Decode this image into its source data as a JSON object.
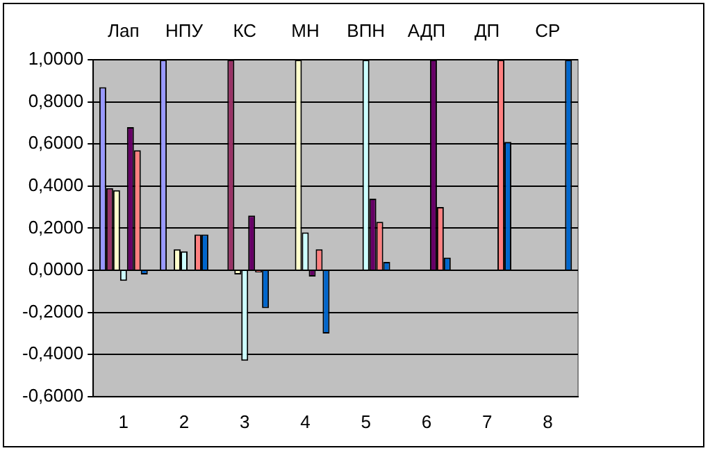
{
  "chart_data": {
    "type": "bar",
    "categories": [
      "1",
      "2",
      "3",
      "4",
      "5",
      "6",
      "7",
      "8"
    ],
    "annotations": [
      "Лап",
      "НПУ",
      "КС",
      "МН",
      "ВПН",
      "АДП",
      "ДП",
      "СР"
    ],
    "series": [
      {
        "color": "#9999ff",
        "values": [
          0.87,
          1.0,
          null,
          null,
          null,
          null,
          null,
          null
        ]
      },
      {
        "color": "#993366",
        "values": [
          0.39,
          null,
          1.0,
          null,
          null,
          null,
          null,
          null
        ]
      },
      {
        "color": "#ffffcc",
        "values": [
          0.38,
          0.1,
          -0.02,
          1.0,
          null,
          null,
          null,
          null
        ]
      },
      {
        "color": "#ccffff",
        "values": [
          -0.05,
          0.09,
          -0.43,
          0.18,
          1.0,
          null,
          null,
          null
        ]
      },
      {
        "color": "#660066",
        "values": [
          0.68,
          null,
          0.26,
          -0.03,
          0.34,
          1.0,
          null,
          null
        ]
      },
      {
        "color": "#ff8080",
        "values": [
          0.57,
          0.17,
          -0.01,
          0.1,
          0.23,
          0.3,
          1.0,
          null
        ]
      },
      {
        "color": "#0066cc",
        "values": [
          -0.02,
          0.17,
          -0.18,
          -0.3,
          0.04,
          0.06,
          0.61,
          1.0
        ]
      }
    ],
    "ylim": [
      -0.6,
      1.0
    ],
    "yticks": [
      {
        "value": -0.6,
        "label": "-0,6000"
      },
      {
        "value": -0.4,
        "label": "-0,4000"
      },
      {
        "value": -0.2,
        "label": "-0,2000"
      },
      {
        "value": 0,
        "label": "0,0000"
      },
      {
        "value": 0.2,
        "label": "0,2000"
      },
      {
        "value": 0.4,
        "label": "0,4000"
      },
      {
        "value": 0.6,
        "label": "0,6000"
      },
      {
        "value": 0.8,
        "label": "0,8000"
      },
      {
        "value": 1.0,
        "label": "1,0000"
      }
    ],
    "grid": "y",
    "legend": false
  }
}
